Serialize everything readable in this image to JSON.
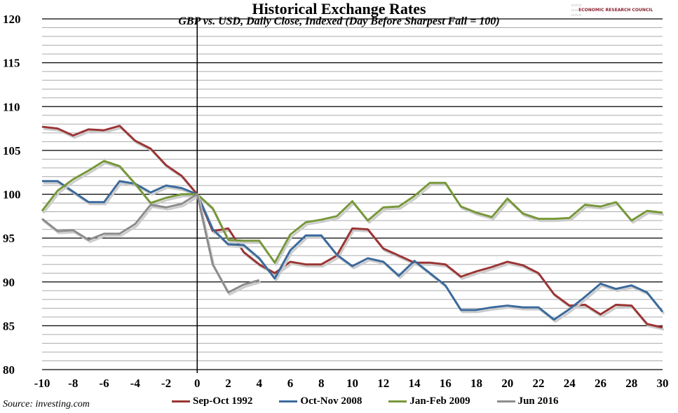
{
  "chart_data": {
    "type": "line",
    "title": "Historical Exchange Rates",
    "subtitle": "GBP vs. USD, Daily Close, Indexed (Day Before Sharpest Fall = 100)",
    "source": "Source: investing.com",
    "logo_text": "ECONOMIC RESEARCH COUNCIL",
    "xlim": [
      -10,
      30
    ],
    "ylim": [
      80,
      120
    ],
    "x_ticks": [
      -10,
      -8,
      -6,
      -4,
      -2,
      0,
      2,
      4,
      6,
      8,
      10,
      12,
      14,
      16,
      18,
      20,
      22,
      24,
      26,
      28,
      30
    ],
    "y_ticks": [
      80,
      85,
      90,
      95,
      100,
      105,
      110,
      115,
      120
    ],
    "grid": true,
    "legend_position": "bottom",
    "series": [
      {
        "name": "Sep-Oct 1992",
        "color": "#9b3535",
        "x_start": -10,
        "values": [
          107.7,
          107.5,
          106.7,
          107.4,
          107.3,
          107.8,
          106.1,
          105.2,
          103.3,
          102.1,
          100,
          95.8,
          96.1,
          93.4,
          92.0,
          91.0,
          92.3,
          92.0,
          92.0,
          93.0,
          96.1,
          96.0,
          93.8,
          93.0,
          92.2,
          92.2,
          92.0,
          90.6,
          91.2,
          91.7,
          92.3,
          91.9,
          91.0,
          88.6,
          87.3,
          87.4,
          86.3,
          87.4,
          87.3,
          85.2,
          84.8
        ]
      },
      {
        "name": "Oct-Nov 2008",
        "color": "#3b6a9c",
        "x_start": -10,
        "values": [
          101.5,
          101.5,
          100.3,
          99.1,
          99.1,
          101.5,
          101.2,
          100.2,
          101.0,
          100.7,
          100,
          96.0,
          94.3,
          94.2,
          92.7,
          90.4,
          93.6,
          95.3,
          95.3,
          93.1,
          91.8,
          92.7,
          92.3,
          90.7,
          92.4,
          91.0,
          89.6,
          86.8,
          86.8,
          87.1,
          87.3,
          87.1,
          87.1,
          85.7,
          86.9,
          88.3,
          89.8,
          89.2,
          89.6,
          88.8,
          86.6
        ]
      },
      {
        "name": "Jan-Feb 2009",
        "color": "#77983a",
        "x_start": -10,
        "values": [
          98.1,
          100.4,
          101.7,
          102.7,
          103.8,
          103.2,
          101.2,
          99.0,
          99.6,
          100.0,
          100,
          98.4,
          94.8,
          94.7,
          94.7,
          92.2,
          95.4,
          96.8,
          97.1,
          97.5,
          99.2,
          97.0,
          98.5,
          98.6,
          99.8,
          101.3,
          101.3,
          98.6,
          97.9,
          97.4,
          99.5,
          97.8,
          97.2,
          97.2,
          97.3,
          98.8,
          98.6,
          99.1,
          97.0,
          98.1,
          97.9
        ]
      },
      {
        "name": "Jun 2016",
        "color": "#8c8c8c",
        "x_start": -10,
        "values": [
          97.2,
          95.8,
          95.9,
          94.8,
          95.5,
          95.5,
          96.6,
          98.8,
          98.5,
          98.9,
          100,
          92.0,
          88.8,
          89.7,
          90.2
        ]
      }
    ]
  }
}
